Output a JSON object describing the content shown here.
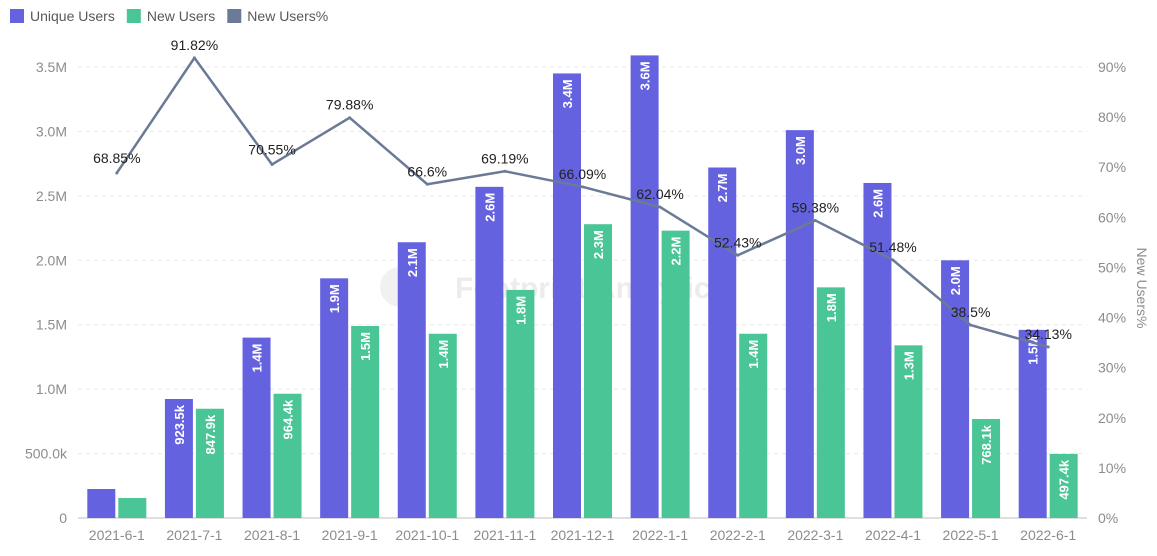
{
  "chart_data": {
    "type": "bar",
    "categories": [
      "2021-6-1",
      "2021-7-1",
      "2021-8-1",
      "2021-9-1",
      "2021-10-1",
      "2021-11-1",
      "2021-12-1",
      "2022-1-1",
      "2022-2-1",
      "2022-3-1",
      "2022-4-1",
      "2022-5-1",
      "2022-6-1"
    ],
    "series": [
      {
        "name": "Unique Users",
        "type": "bar",
        "axis": "left",
        "color": "#6562e0",
        "values": [
          225000,
          923500,
          1400000,
          1860000,
          2140000,
          2570000,
          3450000,
          3590000,
          2720000,
          3010000,
          2600000,
          2000000,
          1460000
        ],
        "labels": [
          "",
          "923.5k",
          "1.4M",
          "1.9M",
          "2.1M",
          "2.6M",
          "3.4M",
          "3.6M",
          "2.7M",
          "3.0M",
          "2.6M",
          "2.0M",
          "1.5M"
        ]
      },
      {
        "name": "New Users",
        "type": "bar",
        "axis": "left",
        "color": "#4ac596",
        "values": [
          155000,
          847900,
          964400,
          1490000,
          1430000,
          1770000,
          2280000,
          2230000,
          1430000,
          1790000,
          1340000,
          768100,
          497400
        ],
        "labels": [
          "",
          "847.9k",
          "964.4k",
          "1.5M",
          "1.4M",
          "1.8M",
          "2.3M",
          "2.2M",
          "1.4M",
          "1.8M",
          "1.3M",
          "768.1k",
          "497.4k"
        ]
      },
      {
        "name": "New Users%",
        "type": "line",
        "axis": "right",
        "color": "#6b7a96",
        "values": [
          68.85,
          91.82,
          70.55,
          79.88,
          66.6,
          69.19,
          66.09,
          62.04,
          52.43,
          59.38,
          51.48,
          38.5,
          34.13
        ],
        "labels": [
          "68.85%",
          "91.82%",
          "70.55%",
          "79.88%",
          "66.6%",
          "69.19%",
          "66.09%",
          "62.04%",
          "52.43%",
          "59.38%",
          "51.48%",
          "38.5%",
          "34.13%"
        ]
      }
    ],
    "y_left": {
      "range": [
        0,
        3500000
      ],
      "ticks": [
        0,
        500000,
        1000000,
        1500000,
        2000000,
        2500000,
        3000000,
        3500000
      ],
      "tick_labels": [
        "0",
        "500.0k",
        "1.0M",
        "1.5M",
        "2.0M",
        "2.5M",
        "3.0M",
        "3.5M"
      ]
    },
    "y_right": {
      "label": "New Users%",
      "range": [
        0,
        90
      ],
      "ticks": [
        0,
        10,
        20,
        30,
        40,
        50,
        60,
        70,
        80,
        90
      ],
      "tick_labels": [
        "0%",
        "10%",
        "20%",
        "30%",
        "40%",
        "50%",
        "60%",
        "70%",
        "80%",
        "90%"
      ]
    },
    "grid": true,
    "legend": {
      "position": "top-left",
      "items": [
        {
          "label": "Unique Users",
          "color": "#6562e0"
        },
        {
          "label": "New Users",
          "color": "#4ac596"
        },
        {
          "label": "New Users%",
          "color": "#6b7a96"
        }
      ]
    },
    "watermark": "Footprint Analytics"
  }
}
